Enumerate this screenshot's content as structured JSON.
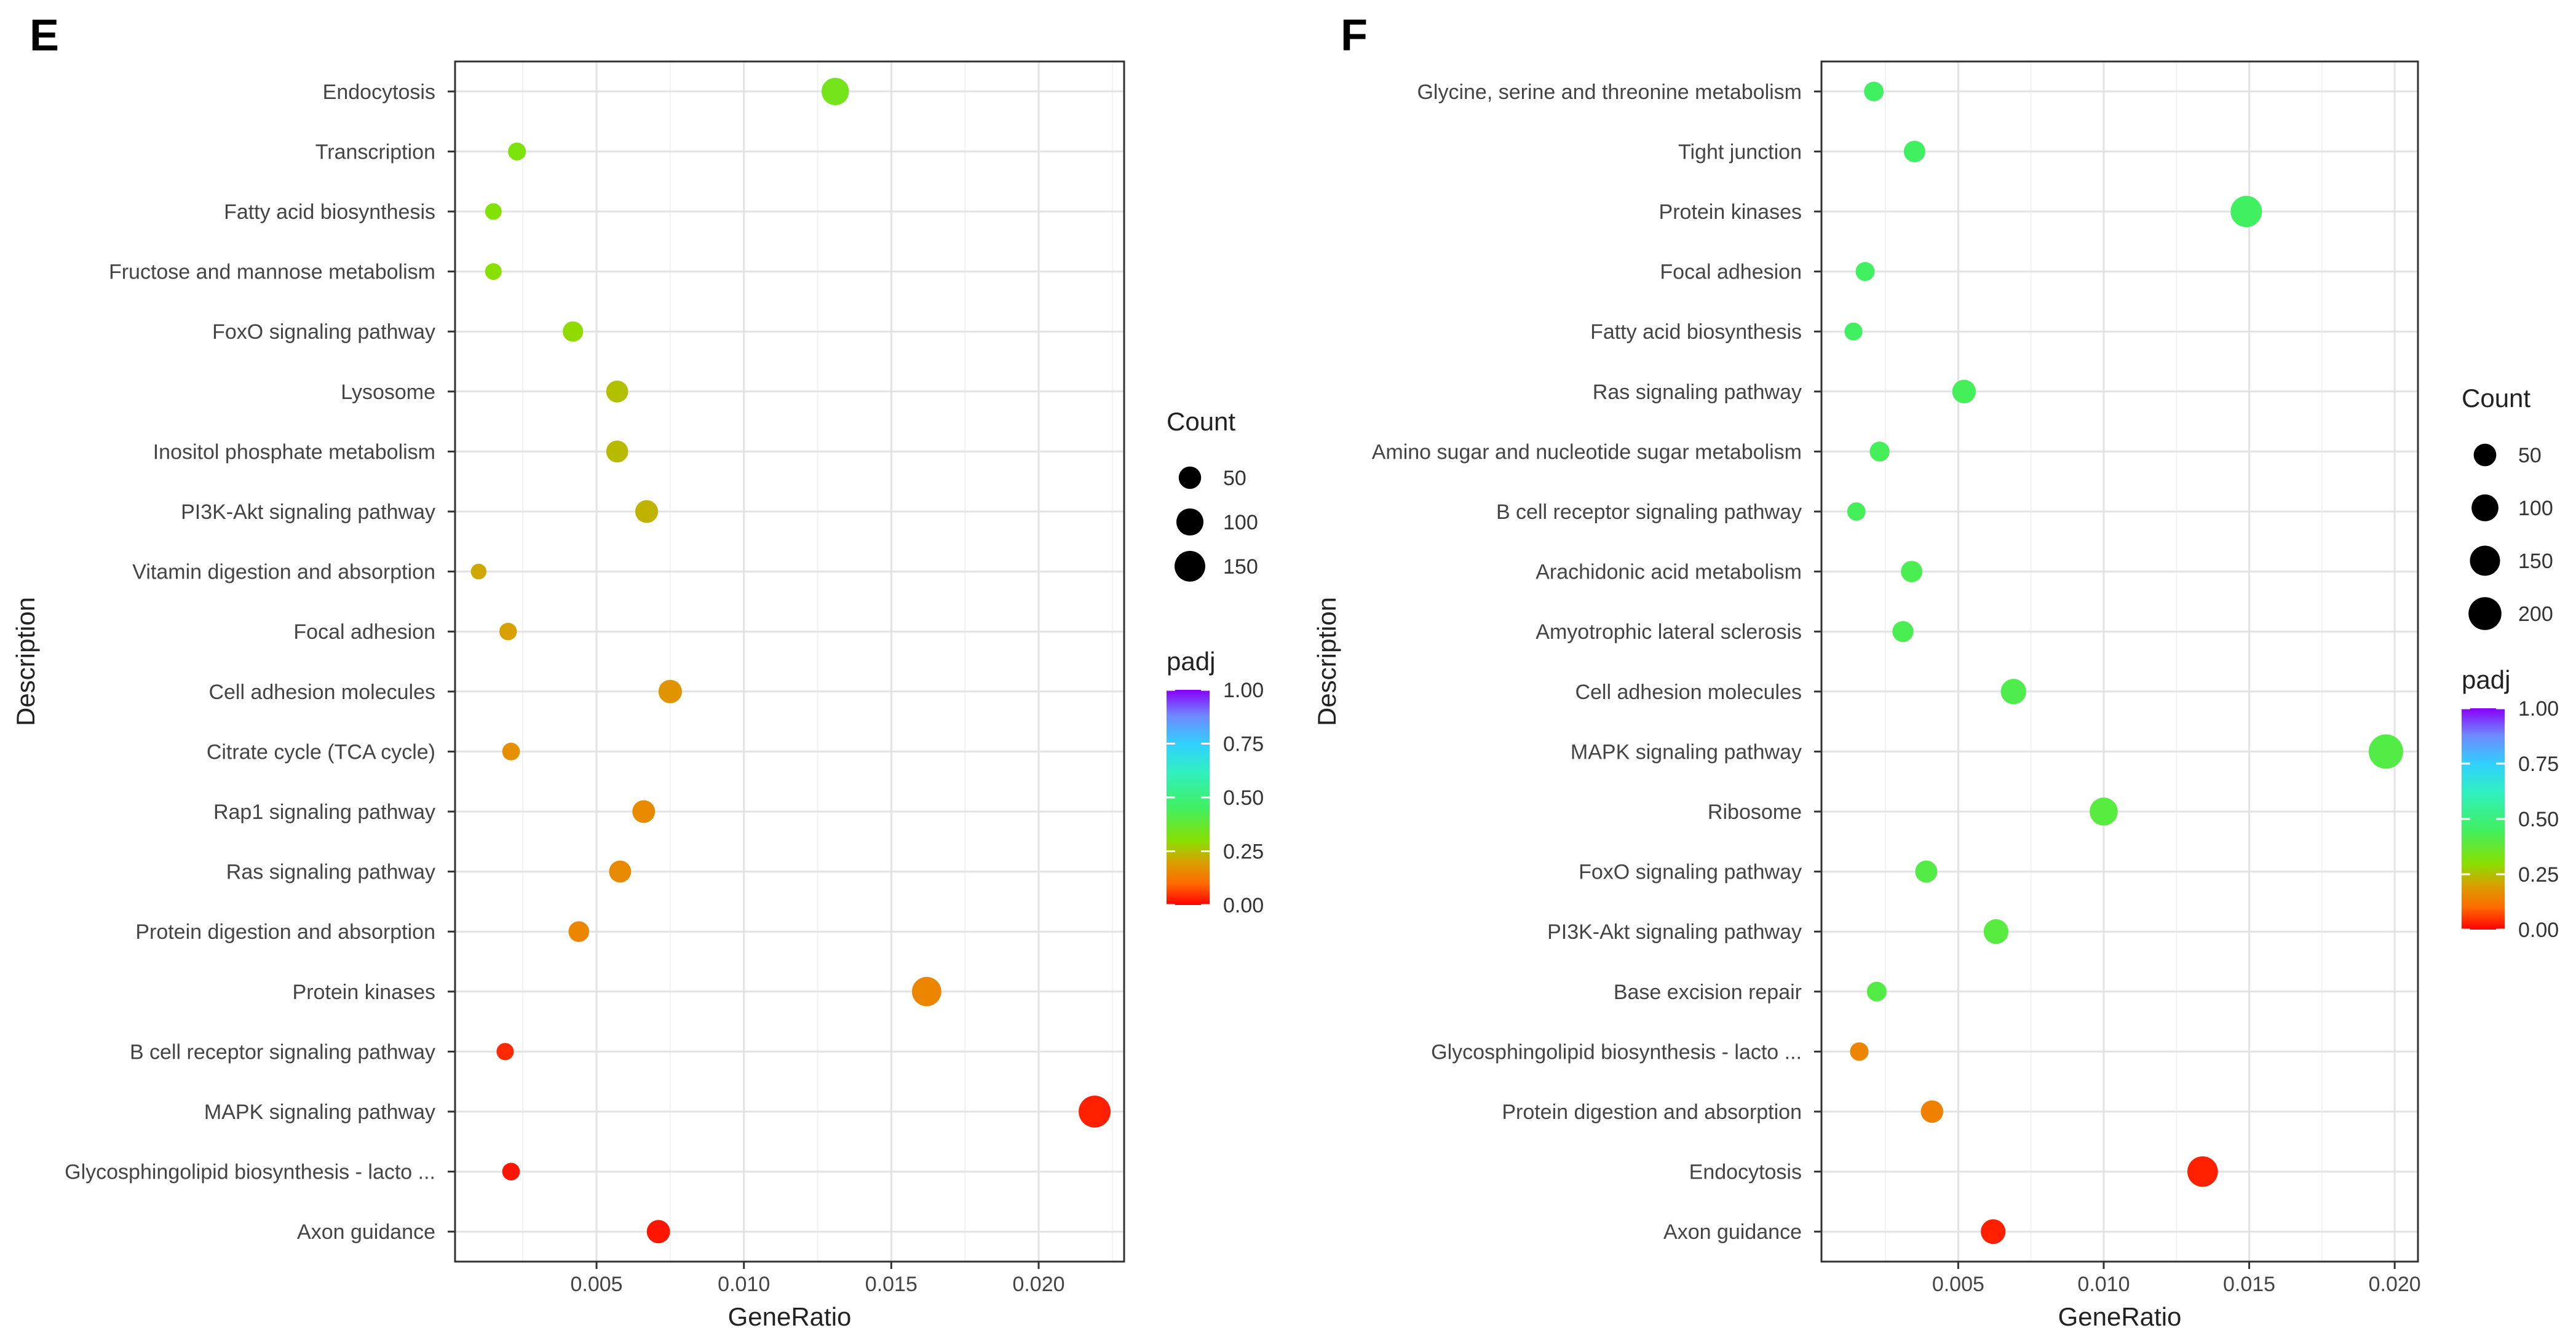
{
  "chart_data": [
    {
      "type": "scatter",
      "panel_label": "E",
      "xlabel": "GeneRatio",
      "ylabel": "Description",
      "xlim": [
        0.0002,
        0.0229
      ],
      "xticks": [
        0.005,
        0.01,
        0.015,
        0.02
      ],
      "xtick_labels": [
        "0.005",
        "0.010",
        "0.015",
        "0.020"
      ],
      "grid": true,
      "size_legend": {
        "title": "Count",
        "values": [
          50,
          100,
          150
        ],
        "labels": [
          "50",
          "100",
          "150"
        ],
        "max_count": 170
      },
      "color_legend": {
        "title": "padj",
        "ticks": [
          0,
          0.25,
          0.5,
          0.75,
          1.0
        ],
        "tick_labels": [
          "0.00",
          "0.25",
          "0.50",
          "0.75",
          "1.00"
        ]
      },
      "points": [
        {
          "description": "Endocytosis",
          "gene_ratio": 0.0131,
          "count": 104,
          "padj": 0.34
        },
        {
          "description": "Transcription",
          "gene_ratio": 0.0023,
          "count": 18,
          "padj": 0.32
        },
        {
          "description": "Fatty acid biosynthesis",
          "gene_ratio": 0.0015,
          "count": 12,
          "padj": 0.31
        },
        {
          "description": "Fructose and mannose metabolism",
          "gene_ratio": 0.0015,
          "count": 12,
          "padj": 0.3
        },
        {
          "description": "FoxO signaling pathway",
          "gene_ratio": 0.0042,
          "count": 34,
          "padj": 0.29
        },
        {
          "description": "Lysosome",
          "gene_ratio": 0.0057,
          "count": 46,
          "padj": 0.25
        },
        {
          "description": "Inositol phosphate metabolism",
          "gene_ratio": 0.0057,
          "count": 46,
          "padj": 0.24
        },
        {
          "description": "PI3K-Akt signaling pathway",
          "gene_ratio": 0.0067,
          "count": 54,
          "padj": 0.23
        },
        {
          "description": "Vitamin digestion and absorption",
          "gene_ratio": 0.001,
          "count": 8,
          "padj": 0.21
        },
        {
          "description": "Focal adhesion",
          "gene_ratio": 0.002,
          "count": 16,
          "padj": 0.2
        },
        {
          "description": "Cell adhesion molecules",
          "gene_ratio": 0.0075,
          "count": 60,
          "padj": 0.18
        },
        {
          "description": "Citrate cycle (TCA cycle)",
          "gene_ratio": 0.0021,
          "count": 17,
          "padj": 0.17
        },
        {
          "description": "Rap1 signaling pathway",
          "gene_ratio": 0.0066,
          "count": 53,
          "padj": 0.16
        },
        {
          "description": "Ras signaling pathway",
          "gene_ratio": 0.0058,
          "count": 47,
          "padj": 0.16
        },
        {
          "description": "Protein digestion and absorption",
          "gene_ratio": 0.0044,
          "count": 36,
          "padj": 0.15
        },
        {
          "description": "Protein kinases",
          "gene_ratio": 0.0162,
          "count": 130,
          "padj": 0.15
        },
        {
          "description": "B cell receptor signaling pathway",
          "gene_ratio": 0.0019,
          "count": 15,
          "padj": 0.04
        },
        {
          "description": "MAPK signaling pathway",
          "gene_ratio": 0.0219,
          "count": 170,
          "padj": 0.03
        },
        {
          "description": "Glycosphingolipid biosynthesis - lacto ...",
          "gene_ratio": 0.0021,
          "count": 17,
          "padj": 0.02
        },
        {
          "description": "Axon guidance",
          "gene_ratio": 0.0071,
          "count": 58,
          "padj": 0.02
        }
      ]
    },
    {
      "type": "scatter",
      "panel_label": "F",
      "xlabel": "GeneRatio",
      "ylabel": "Description",
      "xlim": [
        0.0003,
        0.0208
      ],
      "xticks": [
        0.005,
        0.01,
        0.015,
        0.02
      ],
      "xtick_labels": [
        "0.005",
        "0.010",
        "0.015",
        "0.020"
      ],
      "grid": true,
      "size_legend": {
        "title": "Count",
        "values": [
          50,
          100,
          150,
          200
        ],
        "labels": [
          "50",
          "100",
          "150",
          "200"
        ],
        "max_count": 230
      },
      "color_legend": {
        "title": "padj",
        "ticks": [
          0,
          0.25,
          0.5,
          0.75,
          1.0
        ],
        "tick_labels": [
          "0.00",
          "0.25",
          "0.50",
          "0.75",
          "1.00"
        ]
      },
      "points": [
        {
          "description": "Glycine, serine and threonine metabolism",
          "gene_ratio": 0.0021,
          "count": 25,
          "padj": 0.45
        },
        {
          "description": "Tight junction",
          "gene_ratio": 0.0035,
          "count": 40,
          "padj": 0.45
        },
        {
          "description": "Protein kinases",
          "gene_ratio": 0.0149,
          "count": 170,
          "padj": 0.45
        },
        {
          "description": "Focal adhesion",
          "gene_ratio": 0.0018,
          "count": 21,
          "padj": 0.45
        },
        {
          "description": "Fatty acid biosynthesis",
          "gene_ratio": 0.0014,
          "count": 15,
          "padj": 0.45
        },
        {
          "description": "Ras signaling pathway",
          "gene_ratio": 0.0052,
          "count": 60,
          "padj": 0.44
        },
        {
          "description": "Amino sugar and nucleotide sugar metabolism",
          "gene_ratio": 0.0023,
          "count": 27,
          "padj": 0.44
        },
        {
          "description": "B cell receptor signaling pathway",
          "gene_ratio": 0.0015,
          "count": 17,
          "padj": 0.44
        },
        {
          "description": "Arachidonic acid metabolism",
          "gene_ratio": 0.0034,
          "count": 39,
          "padj": 0.43
        },
        {
          "description": "Amyotrophic lateral sclerosis",
          "gene_ratio": 0.0031,
          "count": 36,
          "padj": 0.43
        },
        {
          "description": "Cell adhesion molecules",
          "gene_ratio": 0.0069,
          "count": 80,
          "padj": 0.42
        },
        {
          "description": "MAPK signaling pathway",
          "gene_ratio": 0.0197,
          "count": 230,
          "padj": 0.41
        },
        {
          "description": "Ribosome",
          "gene_ratio": 0.01,
          "count": 116,
          "padj": 0.4
        },
        {
          "description": "FoxO signaling pathway",
          "gene_ratio": 0.0039,
          "count": 45,
          "padj": 0.41
        },
        {
          "description": "PI3K-Akt signaling pathway",
          "gene_ratio": 0.0063,
          "count": 73,
          "padj": 0.4
        },
        {
          "description": "Base excision repair",
          "gene_ratio": 0.0022,
          "count": 26,
          "padj": 0.41
        },
        {
          "description": "Glycosphingolipid biosynthesis - lacto ...",
          "gene_ratio": 0.0016,
          "count": 18,
          "padj": 0.15
        },
        {
          "description": "Protein digestion and absorption",
          "gene_ratio": 0.0041,
          "count": 48,
          "padj": 0.14
        },
        {
          "description": "Endocytosis",
          "gene_ratio": 0.0134,
          "count": 156,
          "padj": 0.03
        },
        {
          "description": "Axon guidance",
          "gene_ratio": 0.0062,
          "count": 72,
          "padj": 0.03
        }
      ]
    }
  ]
}
